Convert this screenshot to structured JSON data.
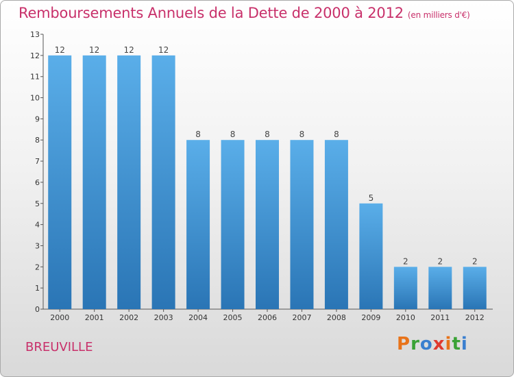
{
  "title": "Remboursements Annuels de la Dette de 2000 à 2012",
  "unit": "(en milliers d'€)",
  "commune": "BREUVILLE",
  "logo": "Proxiti",
  "colors": {
    "title": "#c8306a",
    "bar_top": "#5aaee9",
    "bar_bottom": "#2a75b5",
    "logo": [
      "#e8731a",
      "#3aa236",
      "#3a7fcf",
      "#e03a2f",
      "#e8731a",
      "#3aa236",
      "#3a7fcf"
    ]
  },
  "chart_data": {
    "type": "bar",
    "title": "Remboursements Annuels de la Dette de 2000 à 2012",
    "xlabel": "",
    "ylabel": "(en milliers d'€)",
    "categories": [
      "2000",
      "2001",
      "2002",
      "2003",
      "2004",
      "2005",
      "2006",
      "2007",
      "2008",
      "2009",
      "2010",
      "2011",
      "2012"
    ],
    "values": [
      12,
      12,
      12,
      12,
      8,
      8,
      8,
      8,
      8,
      5,
      2,
      2,
      2
    ],
    "ylim": [
      0,
      13
    ],
    "yticks": [
      0,
      1,
      2,
      3,
      4,
      5,
      6,
      7,
      8,
      9,
      10,
      11,
      12,
      13
    ],
    "grid": false,
    "legend": "none"
  }
}
